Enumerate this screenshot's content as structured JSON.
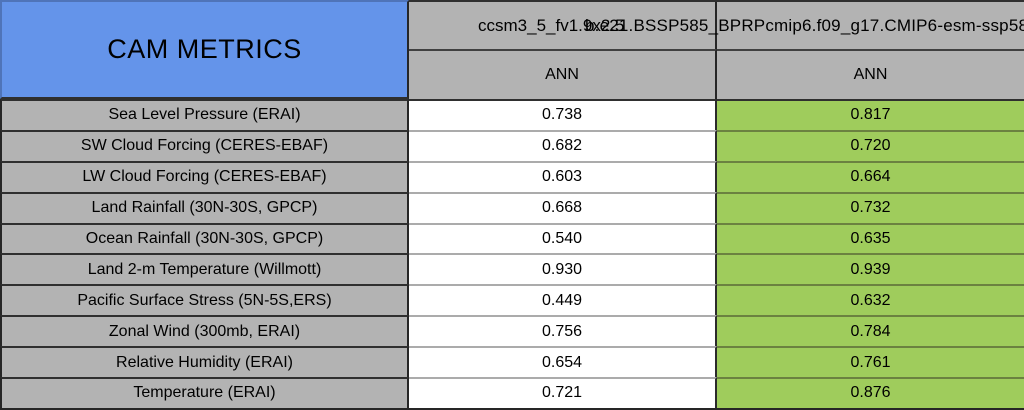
{
  "title": "CAM METRICS",
  "header": {
    "model_run_1": "ccsm3_5_fv1.9x2.5",
    "model_run_2": "b.e21.BSSP585_BPRPcmip6.f09_g17.CMIP6-esm-ssp58",
    "season_1": "ANN",
    "season_2": "ANN"
  },
  "rows": [
    {
      "metric": "Sea Level Pressure (ERAI)",
      "run1": "0.738",
      "run2": "0.817"
    },
    {
      "metric": "SW Cloud Forcing (CERES-EBAF)",
      "run1": "0.682",
      "run2": "0.720"
    },
    {
      "metric": "LW Cloud Forcing (CERES-EBAF)",
      "run1": "0.603",
      "run2": "0.664"
    },
    {
      "metric": "Land Rainfall (30N-30S, GPCP)",
      "run1": "0.668",
      "run2": "0.732"
    },
    {
      "metric": "Ocean Rainfall (30N-30S, GPCP)",
      "run1": "0.540",
      "run2": "0.635"
    },
    {
      "metric": "Land 2-m Temperature (Willmott)",
      "run1": "0.930",
      "run2": "0.939"
    },
    {
      "metric": "Pacific Surface Stress (5N-5S,ERS)",
      "run1": "0.449",
      "run2": "0.632"
    },
    {
      "metric": "Zonal Wind (300mb, ERAI)",
      "run1": "0.756",
      "run2": "0.784"
    },
    {
      "metric": "Relative Humidity (ERAI)",
      "run1": "0.654",
      "run2": "0.761"
    },
    {
      "metric": "Temperature (ERAI)",
      "run1": "0.721",
      "run2": "0.876"
    }
  ],
  "colors": {
    "title_bg": "#6494EA",
    "header_bg": "#B3B3B3",
    "metric_bg": "#B3B3B3",
    "run1_bg": "#FFFFFF",
    "run2_bg": "#9FCC5C"
  }
}
